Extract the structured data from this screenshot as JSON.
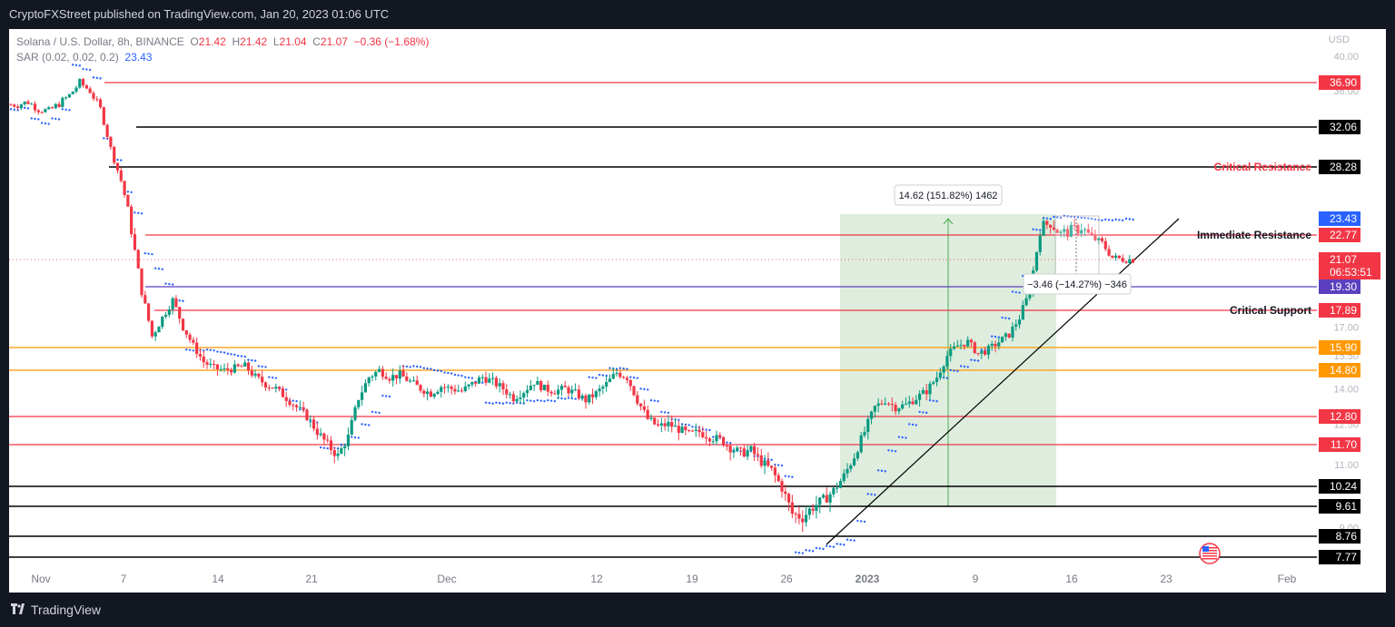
{
  "header": {
    "published": "CryptoFXStreet published on TradingView.com, Jan 20, 2023 01:06 UTC"
  },
  "legend": {
    "symbol": "Solana / U.S. Dollar, 8h, BINANCE",
    "o_label": "O",
    "o": "21.42",
    "h_label": "H",
    "h": "21.42",
    "l_label": "L",
    "l": "21.04",
    "c_label": "C",
    "c": "21.07",
    "change": "−0.36 (−1.68%)",
    "sar_label": "SAR (0.02, 0.02, 0.2)",
    "sar_value": "23.43"
  },
  "footer": {
    "brand": "TradingView"
  },
  "chart_data": {
    "type": "candlestick",
    "currency": "USD",
    "y_axis_ticks": [
      "40.00",
      "36.00",
      "17.00",
      "15.50",
      "14.00",
      "12.50",
      "11.00",
      "9.00"
    ],
    "x_axis_ticks": [
      "Nov",
      "7",
      "14",
      "21",
      "Dec",
      "12",
      "19",
      "26",
      "2023",
      "9",
      "16",
      "23",
      "Feb"
    ],
    "last_price": "21.07",
    "countdown": "06:53:51",
    "colors": {
      "up": "#089981",
      "down": "#f23645",
      "red_line": "#f23645",
      "black_line": "#000000",
      "orange_line": "#ff9800",
      "blue_line": "#5b3fbf",
      "sar": "#2962ff",
      "range_fill": "#d8ead8"
    },
    "levels": [
      {
        "value": 36.9,
        "label": "36.90",
        "style": "red"
      },
      {
        "value": 32.06,
        "label": "32.06",
        "style": "black"
      },
      {
        "value": 28.28,
        "label": "28.28",
        "style": "black"
      },
      {
        "value": 23.43,
        "label": "23.43",
        "style": "blue-tag"
      },
      {
        "value": 22.77,
        "label": "22.77",
        "style": "red"
      },
      {
        "value": 19.3,
        "label": "19.30",
        "style": "blue"
      },
      {
        "value": 17.89,
        "label": "17.89",
        "style": "red"
      },
      {
        "value": 15.9,
        "label": "15.90",
        "style": "orange"
      },
      {
        "value": 14.8,
        "label": "14.80",
        "style": "orange"
      },
      {
        "value": 12.8,
        "label": "12.80",
        "style": "red"
      },
      {
        "value": 11.7,
        "label": "11.70",
        "style": "red"
      },
      {
        "value": 10.24,
        "label": "10.24",
        "style": "black"
      },
      {
        "value": 9.61,
        "label": "9.61",
        "style": "black"
      },
      {
        "value": 8.76,
        "label": "8.76",
        "style": "black"
      },
      {
        "value": 7.77,
        "label": "7.77",
        "style": "black"
      }
    ],
    "annotations": [
      {
        "text": "Critical Resistance",
        "level": 28.28
      },
      {
        "text": "Immediate Resistance",
        "level": 22.77
      },
      {
        "text": "Critical Support",
        "level": 17.89
      }
    ],
    "measure_up": "14.62 (151.82%) 1462",
    "measure_down": "−3.46 (−14.27%) −346",
    "close_path": [
      34.5,
      34.8,
      34.0,
      33.8,
      34.6,
      35.5,
      36.9,
      36.0,
      34.0,
      30.0,
      27.0,
      23.0,
      19.0,
      16.5,
      17.5,
      18.5,
      17.0,
      16.0,
      15.2,
      14.9,
      14.8,
      14.9,
      15.0,
      14.5,
      14.2,
      14.0,
      13.6,
      13.2,
      12.8,
      12.2,
      11.7,
      11.3,
      12.0,
      13.6,
      14.5,
      14.8,
      14.5,
      14.6,
      14.3,
      14.0,
      13.8,
      14.1,
      14.0,
      13.9,
      14.2,
      14.5,
      14.3,
      14.0,
      13.6,
      13.9,
      14.3,
      14.0,
      13.9,
      14.0,
      13.8,
      13.5,
      13.8,
      14.2,
      14.7,
      14.5,
      13.5,
      12.7,
      12.4,
      12.5,
      12.3,
      12.1,
      12.2,
      12.0,
      11.9,
      11.6,
      11.4,
      11.5,
      11.1,
      10.8,
      10.2,
      9.4,
      9.3,
      9.6,
      9.8,
      10.1,
      10.6,
      11.3,
      12.2,
      13.2,
      13.5,
      13.2,
      13.3,
      13.6,
      13.9,
      14.5,
      15.5,
      16.0,
      16.2,
      15.6,
      15.8,
      16.2,
      16.6,
      17.5,
      19.0,
      23.0,
      23.3,
      22.8,
      22.9,
      23.1,
      22.6,
      22.2,
      21.2,
      21.1,
      21.07
    ],
    "sar_path": [
      34.0,
      34.2,
      33.0,
      32.5,
      33.0,
      34.0,
      39.0,
      38.5,
      37.5,
      31.0,
      29.0,
      26.0,
      24.0,
      21.5,
      20.5,
      19.5,
      18.5,
      15.8,
      15.8,
      15.8,
      15.7,
      15.6,
      15.5,
      15.3,
      15.0,
      14.5,
      14.0,
      13.5,
      13.1,
      12.6,
      11.6,
      11.6,
      11.7,
      12.0,
      12.5,
      13.0,
      13.7,
      14.5,
      15.0,
      15.0,
      14.9,
      14.8,
      14.7,
      14.6,
      14.5,
      14.3,
      13.4,
      13.4,
      13.4,
      13.4,
      13.5,
      13.5,
      13.5,
      13.6,
      13.6,
      13.6,
      14.5,
      14.6,
      14.9,
      14.9,
      14.5,
      14.0,
      13.5,
      13.0,
      12.7,
      12.5,
      12.4,
      12.3,
      12.0,
      11.8,
      11.5,
      11.5,
      11.3,
      11.2,
      11.0,
      10.6,
      8.0,
      8.1,
      8.2,
      8.3,
      8.4,
      8.6,
      9.2,
      10.0,
      10.8,
      11.5,
      12.0,
      12.5,
      13.0,
      13.5,
      14.5,
      14.8,
      15.0,
      15.3,
      15.8,
      16.5,
      17.5,
      19.0,
      20.0,
      23.0,
      23.5,
      23.6,
      23.7,
      23.6,
      23.5,
      23.4,
      23.4,
      23.4,
      23.43
    ]
  }
}
